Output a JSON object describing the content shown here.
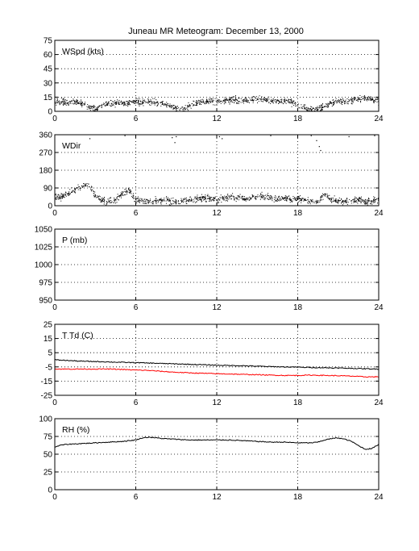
{
  "title": "Juneau MR Meteogram:   December 13, 2000",
  "colors": {
    "series_default": "#000000",
    "dewpoint": "#ff0000",
    "grid": "#000000",
    "background": "#ffffff"
  },
  "chart_data": [
    {
      "type": "scatter",
      "label": "WSpd (kts)",
      "xlim": [
        0,
        24
      ],
      "ylim": [
        0,
        75
      ],
      "xticks": [
        0,
        6,
        12,
        18,
        24
      ],
      "yticks": [
        0,
        15,
        30,
        45,
        60,
        75
      ],
      "grid": true,
      "series": [
        {
          "color": "#000000",
          "x": [
            0,
            0.5,
            1,
            1.5,
            2,
            2.5,
            3,
            3.5,
            4,
            4.5,
            5,
            5.5,
            6,
            6.5,
            7,
            7.5,
            8,
            8.5,
            9,
            9.5,
            10,
            10.5,
            11,
            11.5,
            12,
            12.5,
            13,
            13.5,
            14,
            14.5,
            15,
            15.5,
            16,
            16.5,
            17,
            17.5,
            18,
            18.5,
            19,
            19.5,
            20,
            20.5,
            21,
            21.5,
            22,
            22.5,
            23,
            23.5,
            24
          ],
          "y": [
            10,
            10,
            9,
            10,
            8,
            5,
            2,
            6,
            8,
            9,
            8,
            9,
            10,
            9,
            10,
            9,
            8,
            6,
            3,
            2,
            6,
            9,
            10,
            11,
            10,
            11,
            12,
            12,
            11,
            12,
            13,
            12,
            11,
            12,
            11,
            10,
            7,
            4,
            1,
            2,
            5,
            9,
            11,
            10,
            12,
            13,
            14,
            12,
            10
          ]
        }
      ]
    },
    {
      "type": "scatter",
      "label": "WDir",
      "xlim": [
        0,
        24
      ],
      "ylim": [
        0,
        360
      ],
      "xticks": [
        0,
        6,
        12,
        18,
        24
      ],
      "yticks": [
        0,
        90,
        180,
        270,
        360
      ],
      "grid": true,
      "series": [
        {
          "color": "#000000",
          "x": [
            0,
            0.5,
            1,
            1.5,
            2,
            2.5,
            3,
            3.5,
            4,
            4.5,
            5,
            5.5,
            6,
            6.5,
            7,
            7.5,
            8,
            8.5,
            9,
            9.5,
            10,
            10.5,
            11,
            11.5,
            12,
            12.5,
            13,
            13.5,
            14,
            14.5,
            15,
            15.5,
            16,
            16.5,
            17,
            17.5,
            18,
            18.5,
            19,
            19.5,
            20,
            20.5,
            21,
            21.5,
            22,
            22.5,
            23,
            23.5,
            24
          ],
          "y": [
            40,
            45,
            60,
            80,
            100,
            110,
            50,
            25,
            20,
            30,
            60,
            80,
            30,
            25,
            20,
            25,
            30,
            25,
            20,
            25,
            30,
            35,
            40,
            35,
            30,
            40,
            45,
            40,
            35,
            40,
            45,
            50,
            40,
            35,
            40,
            30,
            35,
            30,
            25,
            20,
            60,
            30,
            25,
            20,
            25,
            30,
            20,
            25,
            30
          ]
        },
        {
          "color": "#000000",
          "x": [
            2.6,
            5.2,
            8.7,
            8.9,
            9.0,
            12.2,
            12.4,
            16.0,
            19.0,
            19.4,
            19.6,
            19.7,
            21.8,
            23.7
          ],
          "y": [
            340,
            355,
            345,
            320,
            350,
            350,
            340,
            355,
            355,
            330,
            300,
            280,
            350,
            355
          ]
        }
      ]
    },
    {
      "type": "line",
      "label": "P (mb)",
      "xlim": [
        0,
        24
      ],
      "ylim": [
        950,
        1050
      ],
      "xticks": [
        0,
        6,
        12,
        18,
        24
      ],
      "yticks": [
        950,
        975,
        1000,
        1025,
        1050
      ],
      "grid": true,
      "series": []
    },
    {
      "type": "line",
      "label": "T Td (C)",
      "xlim": [
        0,
        24
      ],
      "ylim": [
        -25,
        25
      ],
      "xticks": [
        0,
        6,
        12,
        18,
        24
      ],
      "yticks": [
        -25,
        -15,
        -5,
        5,
        15,
        25
      ],
      "grid": true,
      "series": [
        {
          "color": "#000000",
          "x": [
            0,
            1,
            2,
            3,
            4,
            5,
            6,
            7,
            8,
            9,
            10,
            11,
            12,
            13,
            14,
            15,
            16,
            17,
            18,
            19,
            20,
            21,
            22,
            23,
            24
          ],
          "y": [
            0,
            -0.5,
            -1,
            -1.2,
            -1.5,
            -1.8,
            -2,
            -2.3,
            -2.6,
            -2.9,
            -3.2,
            -3.5,
            -3.8,
            -4,
            -4.2,
            -4.5,
            -4.8,
            -5,
            -5.2,
            -5.4,
            -5.6,
            -5.8,
            -6,
            -6.3,
            -6.5
          ]
        },
        {
          "color": "#ff0000",
          "x": [
            0,
            1,
            2,
            3,
            4,
            5,
            6,
            7,
            8,
            9,
            10,
            11,
            12,
            13,
            14,
            15,
            16,
            17,
            18,
            19,
            20,
            21,
            22,
            23,
            24
          ],
          "y": [
            -6.5,
            -6.5,
            -6.5,
            -6.5,
            -6.5,
            -6.8,
            -7.2,
            -7.5,
            -8.2,
            -8.8,
            -9.2,
            -9.5,
            -9.8,
            -10,
            -10.3,
            -10.5,
            -10.8,
            -11,
            -11,
            -10.8,
            -11,
            -11.2,
            -11.5,
            -12,
            -12
          ]
        }
      ]
    },
    {
      "type": "line",
      "label": "RH (%)",
      "xlim": [
        0,
        24
      ],
      "ylim": [
        0,
        100
      ],
      "xticks": [
        0,
        6,
        12,
        18,
        24
      ],
      "yticks": [
        0,
        25,
        50,
        75,
        100
      ],
      "grid": true,
      "series": [
        {
          "color": "#000000",
          "x": [
            0,
            0.5,
            1,
            2,
            3,
            4,
            5,
            6,
            6.5,
            7,
            8,
            9,
            10,
            11,
            12,
            13,
            14,
            15,
            16,
            17,
            18,
            19,
            19.5,
            20,
            20.5,
            21,
            21.5,
            22,
            22.5,
            23,
            23.5,
            24
          ],
          "y": [
            60,
            63,
            64,
            65,
            66,
            67,
            68,
            70,
            73,
            74,
            72,
            71,
            70,
            70,
            70,
            70,
            69,
            68,
            67,
            67,
            66,
            66,
            67,
            70,
            72,
            73,
            71,
            68,
            62,
            57,
            58,
            64
          ]
        }
      ]
    }
  ]
}
